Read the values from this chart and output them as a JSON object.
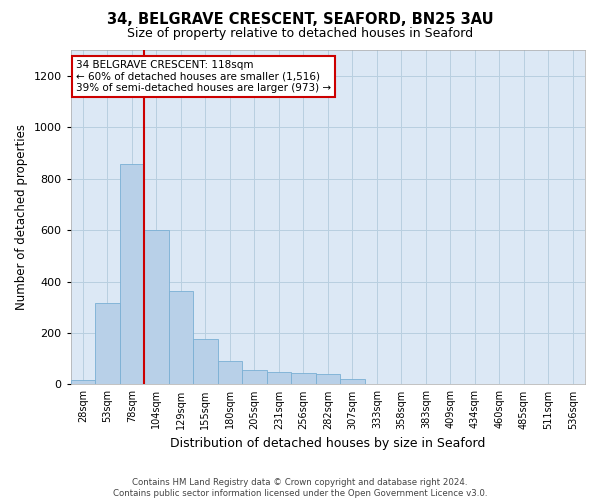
{
  "title1": "34, BELGRAVE CRESCENT, SEAFORD, BN25 3AU",
  "title2": "Size of property relative to detached houses in Seaford",
  "xlabel": "Distribution of detached houses by size in Seaford",
  "ylabel": "Number of detached properties",
  "categories": [
    "28sqm",
    "53sqm",
    "78sqm",
    "104sqm",
    "129sqm",
    "155sqm",
    "180sqm",
    "205sqm",
    "231sqm",
    "256sqm",
    "282sqm",
    "307sqm",
    "333sqm",
    "358sqm",
    "383sqm",
    "409sqm",
    "434sqm",
    "460sqm",
    "485sqm",
    "511sqm",
    "536sqm"
  ],
  "values": [
    18,
    315,
    855,
    600,
    365,
    175,
    90,
    55,
    50,
    45,
    40,
    20,
    0,
    0,
    0,
    0,
    0,
    0,
    0,
    0,
    0
  ],
  "bar_color": "#b8d0e8",
  "bar_edge_color": "#7aafd4",
  "vline_color": "#cc0000",
  "vline_pos": 2.5,
  "annotation_text": "34 BELGRAVE CRESCENT: 118sqm\n← 60% of detached houses are smaller (1,516)\n39% of semi-detached houses are larger (973) →",
  "annotation_box_color": "#ffffff",
  "annotation_box_edge": "#cc0000",
  "ylim": [
    0,
    1300
  ],
  "yticks": [
    0,
    200,
    400,
    600,
    800,
    1000,
    1200
  ],
  "footer": "Contains HM Land Registry data © Crown copyright and database right 2024.\nContains public sector information licensed under the Open Government Licence v3.0.",
  "bg_color": "#ffffff",
  "plot_bg_color": "#dce8f5",
  "grid_color": "#b8cfe0"
}
